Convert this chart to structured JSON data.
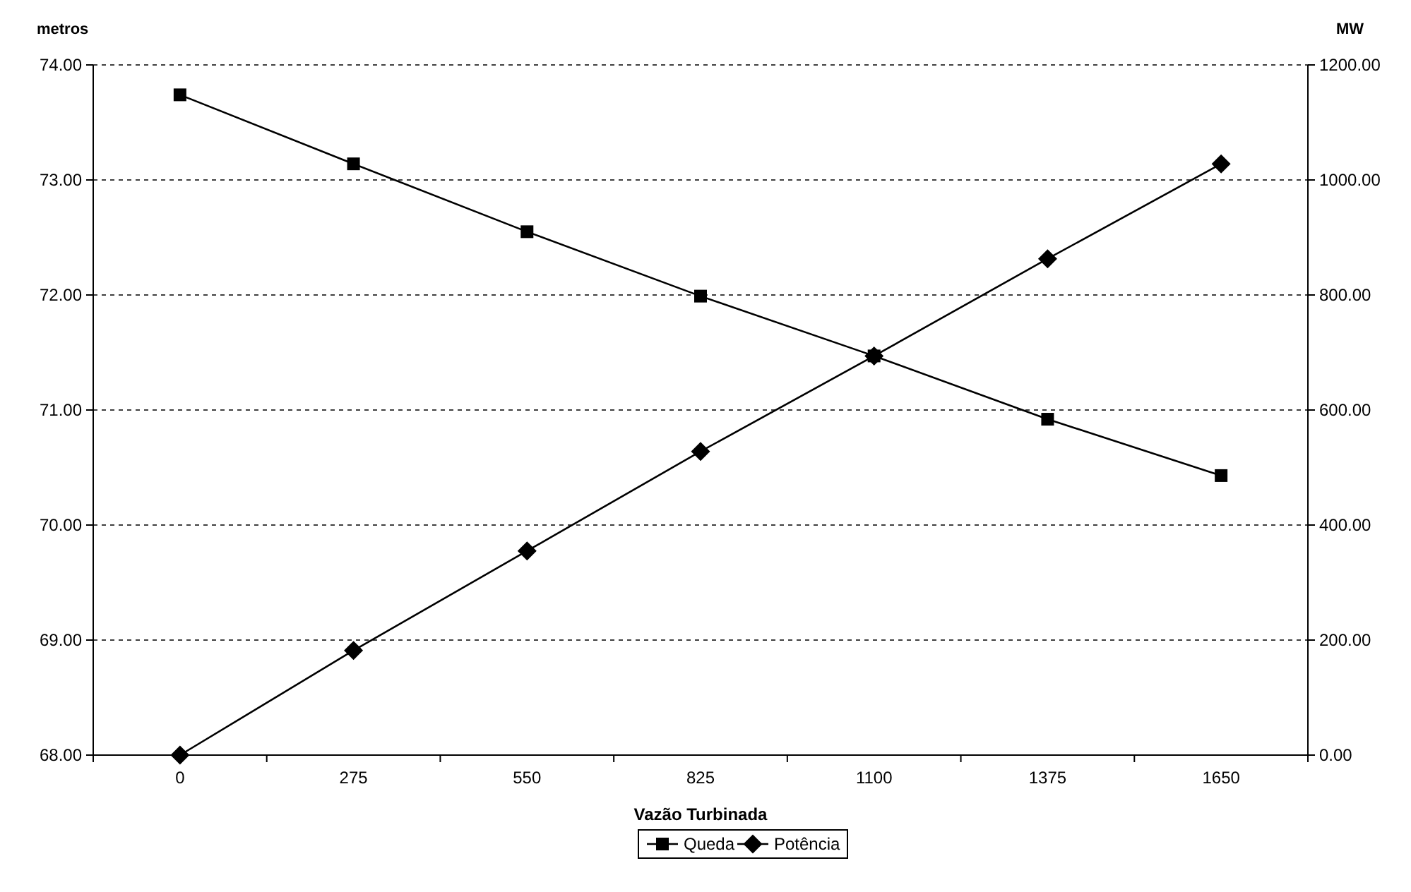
{
  "chart_data": {
    "type": "line",
    "xlabel": "Vazão Turbinada",
    "ylabel": "metros",
    "y2label": "MW",
    "categories": [
      "0",
      "275",
      "550",
      "825",
      "1100",
      "1375",
      "1650"
    ],
    "series": [
      {
        "name": "Queda",
        "color": "#000000",
        "marker": "square",
        "values": [
          73.74,
          73.14,
          72.55,
          71.99,
          71.47,
          70.92,
          70.43
        ]
      },
      {
        "name": "Potência",
        "color": "#000000",
        "marker": "diamond",
        "axis": "y2",
        "values": [
          0,
          182,
          355,
          528,
          694,
          863,
          1028
        ]
      }
    ],
    "ylim": [
      68,
      74
    ],
    "yticks": [
      {
        "value": 68,
        "label": "68.00"
      },
      {
        "value": 69,
        "label": "69.00"
      },
      {
        "value": 70,
        "label": "70.00"
      },
      {
        "value": 71,
        "label": "71.00"
      },
      {
        "value": 72,
        "label": "72.00"
      },
      {
        "value": 73,
        "label": "73.00"
      },
      {
        "value": 74,
        "label": "74.00"
      }
    ],
    "y2lim": [
      0,
      1200
    ],
    "y2ticks": [
      {
        "value": 0,
        "label": "0.00"
      },
      {
        "value": 200,
        "label": "200.00"
      },
      {
        "value": 400,
        "label": "400.00"
      },
      {
        "value": 600,
        "label": "600.00"
      },
      {
        "value": 800,
        "label": "800.00"
      },
      {
        "value": 1000,
        "label": "1000.00"
      },
      {
        "value": 1200,
        "label": "1200.00"
      }
    ],
    "grid": "y",
    "line_style": "solid",
    "legend": "bottom"
  }
}
